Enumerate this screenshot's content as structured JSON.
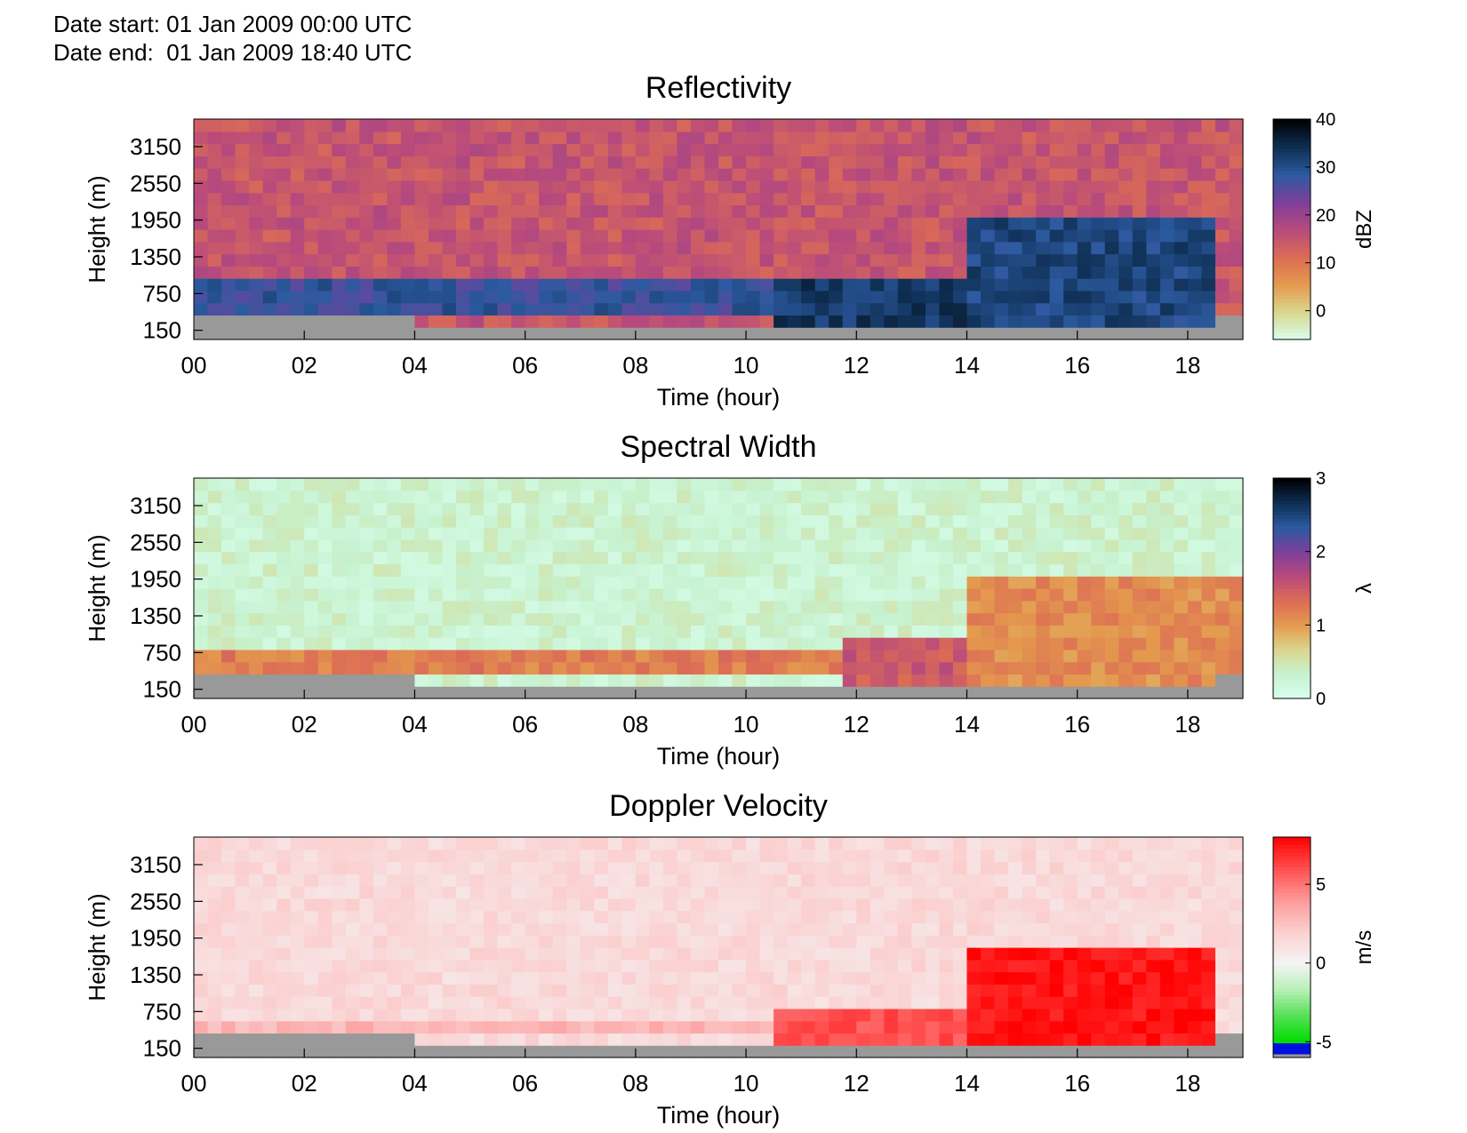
{
  "header": {
    "date_start": "Date start: 01 Jan 2009 00:00 UTC",
    "date_end": "Date end:  01 Jan 2009 18:40 UTC"
  },
  "colors": {
    "no_data": "#999999",
    "refl_scale": [
      "#d9ffee",
      "#d9d78e",
      "#e49a4e",
      "#dc6c55",
      "#b84a7c",
      "#7d3f9b",
      "#2c5aa0",
      "#0e2e52",
      "#000000"
    ],
    "sw_scale": [
      "#d9ffee",
      "#c7f2d0",
      "#d9d78e",
      "#e49a4e",
      "#dc6c55",
      "#b84a7c",
      "#7d3f9b",
      "#2c5aa0",
      "#0e2e52",
      "#000000"
    ],
    "vel_scale_pos": [
      "#f4f4f4",
      "#fbd0d0",
      "#fd9a9a",
      "#ff5050",
      "#ff0000"
    ],
    "vel_scale_neg": [
      "#f4f4f4",
      "#b8f0b8",
      "#55e055",
      "#00dd00"
    ]
  },
  "chart_data": [
    {
      "type": "heatmap",
      "title": "Reflectivity",
      "xlabel": "Time (hour)",
      "ylabel": "Height (m)",
      "xlim": [
        0,
        19
      ],
      "ylim": [
        0,
        3600
      ],
      "x_ticks": [
        "00",
        "02",
        "04",
        "06",
        "08",
        "10",
        "12",
        "14",
        "16",
        "18"
      ],
      "x_tick_values": [
        0,
        2,
        4,
        6,
        8,
        10,
        12,
        14,
        16,
        18
      ],
      "y_ticks": [
        "150",
        "750",
        "1350",
        "1950",
        "2550",
        "3150"
      ],
      "y_tick_values": [
        150,
        750,
        1350,
        1950,
        2550,
        3150
      ],
      "colorbar": {
        "label": "dBZ",
        "ticks": [
          "0",
          "10",
          "20",
          "30",
          "40"
        ],
        "tick_values": [
          0,
          10,
          20,
          30,
          40
        ],
        "range": [
          -6,
          40
        ]
      },
      "no_data_below_m": [
        300,
        450
      ],
      "layers": [
        {
          "from_h": 0,
          "to_h": 10.5,
          "bottom_m": 450,
          "top_m": 900,
          "value": 28
        },
        {
          "from_h": 10.5,
          "to_h": 14,
          "bottom_m": 300,
          "top_m": 1000,
          "value": 33
        },
        {
          "from_h": 14,
          "to_h": 18.3,
          "bottom_m": 300,
          "top_m": 2000,
          "value": 31
        }
      ],
      "background_value": 15
    },
    {
      "type": "heatmap",
      "title": "Spectral Width",
      "xlabel": "Time (hour)",
      "ylabel": "Height (m)",
      "xlim": [
        0,
        19
      ],
      "ylim": [
        0,
        3600
      ],
      "x_ticks": [
        "00",
        "02",
        "04",
        "06",
        "08",
        "10",
        "12",
        "14",
        "16",
        "18"
      ],
      "x_tick_values": [
        0,
        2,
        4,
        6,
        8,
        10,
        12,
        14,
        16,
        18
      ],
      "y_ticks": [
        "150",
        "750",
        "1350",
        "1950",
        "2550",
        "3150"
      ],
      "y_tick_values": [
        150,
        750,
        1350,
        1950,
        2550,
        3150
      ],
      "colorbar": {
        "label": "λ",
        "ticks": [
          "0",
          "1",
          "2",
          "3"
        ],
        "tick_values": [
          0,
          1,
          2,
          3
        ],
        "range": [
          0,
          3
        ]
      },
      "no_data_below_m": [
        300,
        450
      ],
      "layers": [
        {
          "from_h": 0,
          "to_h": 11.7,
          "bottom_m": 450,
          "top_m": 800,
          "value": 1.2
        },
        {
          "from_h": 11.7,
          "to_h": 14,
          "bottom_m": 300,
          "top_m": 1000,
          "value": 1.5
        },
        {
          "from_h": 14,
          "to_h": 19,
          "bottom_m": 300,
          "top_m": 2000,
          "value": 1.1
        }
      ],
      "background_value": 0.3
    },
    {
      "type": "heatmap",
      "title": "Doppler Velocity",
      "xlabel": "Time (hour)",
      "ylabel": "Height (m)",
      "xlim": [
        0,
        19
      ],
      "ylim": [
        0,
        3600
      ],
      "x_ticks": [
        "00",
        "02",
        "04",
        "06",
        "08",
        "10",
        "12",
        "14",
        "16",
        "18"
      ],
      "x_tick_values": [
        0,
        2,
        4,
        6,
        8,
        10,
        12,
        14,
        16,
        18
      ],
      "y_ticks": [
        "150",
        "750",
        "1350",
        "1950",
        "2550",
        "3150"
      ],
      "y_tick_values": [
        150,
        750,
        1350,
        1950,
        2550,
        3150
      ],
      "colorbar": {
        "label": "m/s",
        "ticks": [
          "-5",
          "0",
          "5"
        ],
        "tick_values": [
          -5,
          0,
          5
        ],
        "range": [
          -6,
          8
        ]
      },
      "no_data_below_m": [
        300,
        450
      ],
      "layers": [
        {
          "from_h": 0,
          "to_h": 10.5,
          "bottom_m": 450,
          "top_m": 600,
          "value": 3
        },
        {
          "from_h": 10.5,
          "to_h": 14,
          "bottom_m": 300,
          "top_m": 700,
          "value": 6
        },
        {
          "from_h": 14,
          "to_h": 18.3,
          "bottom_m": 300,
          "top_m": 1800,
          "value": 7.5
        }
      ],
      "background_value": 1.5
    }
  ]
}
